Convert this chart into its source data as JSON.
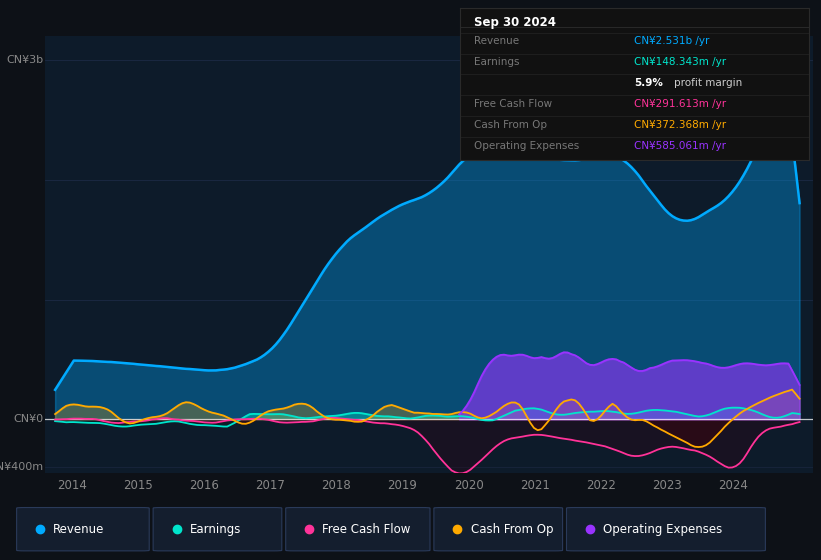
{
  "bg_color": "#0d1117",
  "plot_bg_color": "#0d1b2a",
  "title": "Sep 30 2024",
  "ylim": [
    -450,
    3200
  ],
  "xtick_years": [
    2014,
    2015,
    2016,
    2017,
    2018,
    2019,
    2020,
    2021,
    2022,
    2023,
    2024
  ],
  "colors": {
    "revenue": "#00aaff",
    "earnings": "#00e5cc",
    "free_cash_flow": "#ff3399",
    "cash_from_op": "#ffaa00",
    "operating_expenses": "#9933ff"
  },
  "legend": [
    {
      "label": "Revenue",
      "color": "#00aaff"
    },
    {
      "label": "Earnings",
      "color": "#00e5cc"
    },
    {
      "label": "Free Cash Flow",
      "color": "#ff3399"
    },
    {
      "label": "Cash From Op",
      "color": "#ffaa00"
    },
    {
      "label": "Operating Expenses",
      "color": "#9933ff"
    }
  ],
  "info_rows": [
    {
      "label": "Revenue",
      "value": "CN¥2.531b /yr",
      "value_color": "#00aaff"
    },
    {
      "label": "Earnings",
      "value": "CN¥148.343m /yr",
      "value_color": "#00e5cc"
    },
    {
      "label": "",
      "value": "profit margin",
      "bold_val": "5.9%",
      "value_color": "#cccccc"
    },
    {
      "label": "Free Cash Flow",
      "value": "CN¥291.613m /yr",
      "value_color": "#ff3399"
    },
    {
      "label": "Cash From Op",
      "value": "CN¥372.368m /yr",
      "value_color": "#ffaa00"
    },
    {
      "label": "Operating Expenses",
      "value": "CN¥585.061m /yr",
      "value_color": "#9933ff"
    }
  ]
}
